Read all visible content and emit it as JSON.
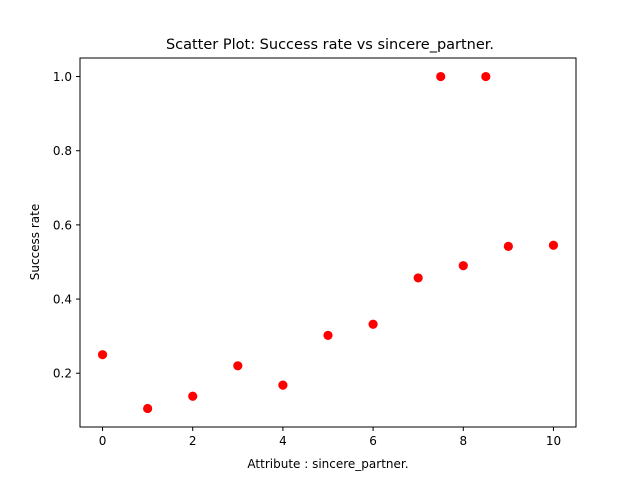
{
  "chart_data": {
    "type": "scatter",
    "title": "Scatter Plot: Success rate vs sincere_partner.",
    "xlabel": "Attribute : sincere_partner.",
    "ylabel": "Success rate",
    "xlim": [
      -0.5,
      10.5
    ],
    "ylim": [
      0.055,
      1.05
    ],
    "xticks": [
      0,
      2,
      4,
      6,
      8,
      10
    ],
    "yticks": [
      0.2,
      0.4,
      0.6,
      0.8,
      1.0
    ],
    "ytick_labels": [
      "0.2",
      "0.4",
      "0.6",
      "0.8",
      "1.0"
    ],
    "grid": false,
    "marker_color": "#ff0000",
    "points": [
      {
        "x": 0,
        "y": 0.25
      },
      {
        "x": 1,
        "y": 0.105
      },
      {
        "x": 2,
        "y": 0.138
      },
      {
        "x": 3,
        "y": 0.22
      },
      {
        "x": 4,
        "y": 0.168
      },
      {
        "x": 5,
        "y": 0.302
      },
      {
        "x": 6,
        "y": 0.332
      },
      {
        "x": 7,
        "y": 0.457
      },
      {
        "x": 7.5,
        "y": 1.0
      },
      {
        "x": 8,
        "y": 0.49
      },
      {
        "x": 8.5,
        "y": 1.0
      },
      {
        "x": 9,
        "y": 0.542
      },
      {
        "x": 10,
        "y": 0.545
      }
    ]
  }
}
